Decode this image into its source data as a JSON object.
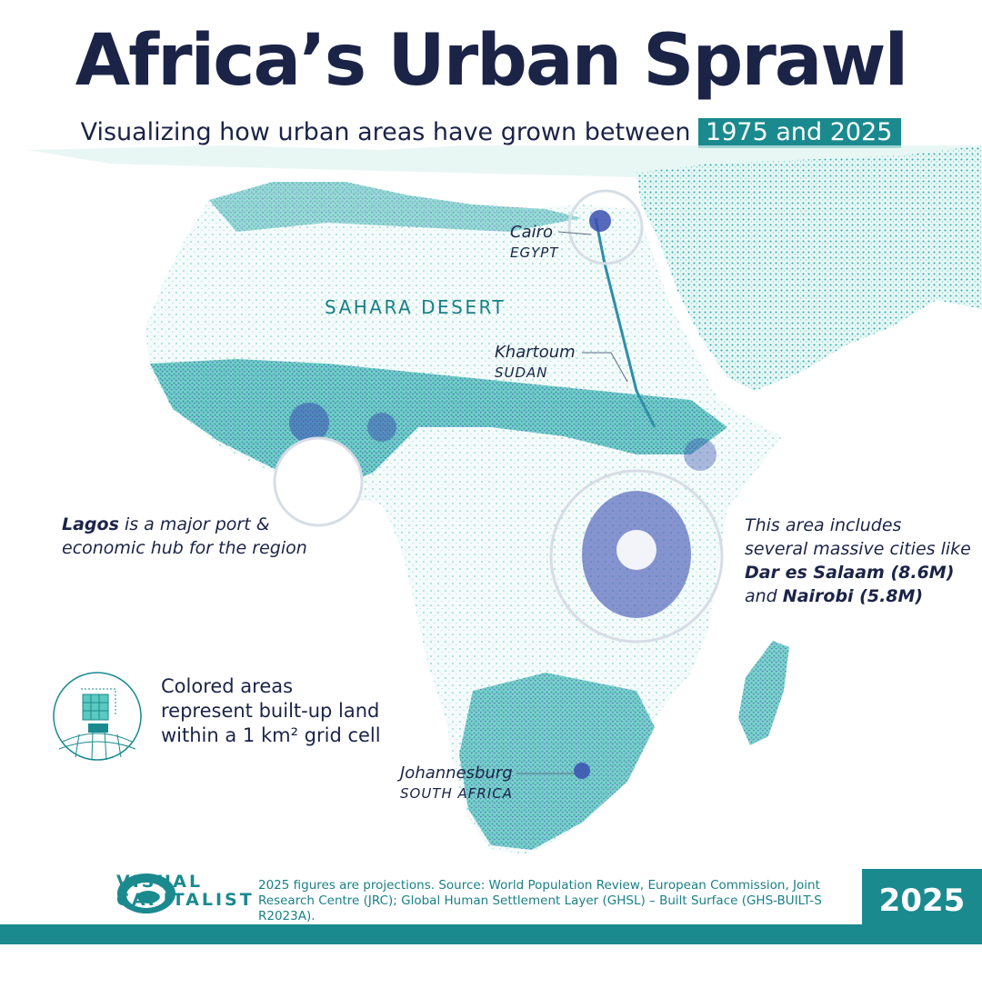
{
  "header": {
    "title": "Africa’s Urban Sprawl",
    "subtitle_prefix": "Visualizing how urban areas have grown between",
    "subtitle_highlight": "1975 and 2025"
  },
  "map": {
    "region_label": "SAHARA DESERT",
    "cities": [
      {
        "city": "Cairo",
        "country": "EGYPT"
      },
      {
        "city": "Khartoum",
        "country": "SUDAN"
      },
      {
        "city": "Johannesburg",
        "country": "SOUTH AFRICA"
      }
    ],
    "colors": {
      "built_low": "#6fd3c7",
      "built_mid": "#24a6ab",
      "built_high": "#3b4fb0",
      "land": "#ffffff"
    }
  },
  "annotations": {
    "lagos": {
      "bold": "Lagos",
      "text1": " is a major port &",
      "text2": "economic hub for the region"
    },
    "east": {
      "line1": "This area includes",
      "line2": "several massive cities like",
      "bold1": "Dar es Salaam (8.6M)",
      "line4_prefix": "and ",
      "bold2": "Nairobi (5.8M)"
    }
  },
  "legend": {
    "line1": "Colored areas",
    "line2": "represent built-up land",
    "line3": "within a 1 km² grid cell",
    "icon": "grid-cell-icon"
  },
  "footer": {
    "logo_line1": "VISUAL",
    "logo_line2": "CAPITALIST",
    "source_line1": "2025 figures are projections. Source: World Population Review, European Commission, Joint",
    "source_line2": "Research Centre (JRC); Global Human Settlement Layer (GHSL) – Built Surface (GHS-BUILT-S R2023A).",
    "year": "2025",
    "accent": "#1a8a8f"
  }
}
